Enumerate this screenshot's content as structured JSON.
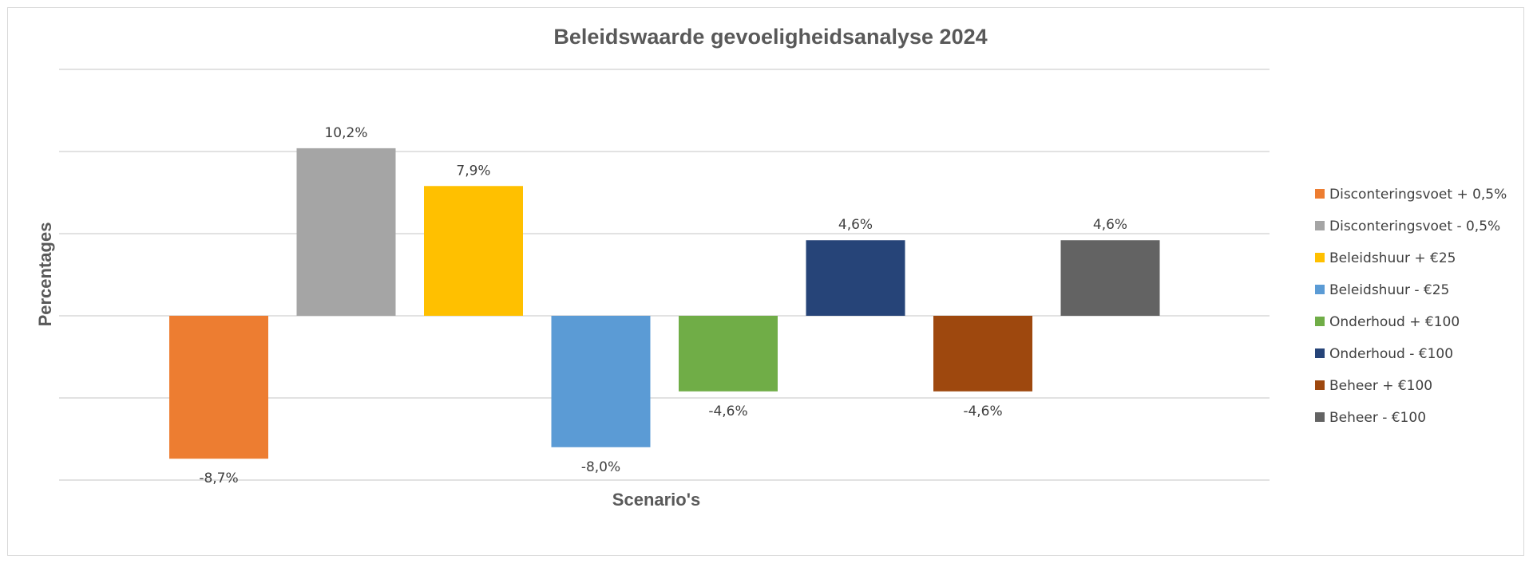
{
  "chart_data": {
    "type": "bar",
    "title": "Beleidswaarde gevoeligheidsanalyse 2024",
    "xlabel": "Scenario's",
    "ylabel": "Percentages",
    "ylim": [
      -10,
      15
    ],
    "grid": true,
    "legend_position": "right",
    "series": [
      {
        "name": "Disconteringsvoet + 0,5%",
        "value": -8.7,
        "label": "-8,7%",
        "color": "#ED7D31"
      },
      {
        "name": "Disconteringsvoet - 0,5%",
        "value": 10.2,
        "label": "10,2%",
        "color": "#A5A5A5"
      },
      {
        "name": "Beleidshuur + €25",
        "value": 7.9,
        "label": "7,9%",
        "color": "#FFC000"
      },
      {
        "name": "Beleidshuur - €25",
        "value": -8.0,
        "label": "-8,0%",
        "color": "#5B9BD5"
      },
      {
        "name": "Onderhoud + €100",
        "value": -4.6,
        "label": "-4,6%",
        "color": "#70AD47"
      },
      {
        "name": "Onderhoud - €100",
        "value": 4.6,
        "label": "4,6%",
        "color": "#264478"
      },
      {
        "name": "Beheer + €100",
        "value": -4.6,
        "label": "-4,6%",
        "color": "#9E480E"
      },
      {
        "name": "Beheer - €100",
        "value": 4.6,
        "label": "4,6%",
        "color": "#636363"
      }
    ]
  }
}
